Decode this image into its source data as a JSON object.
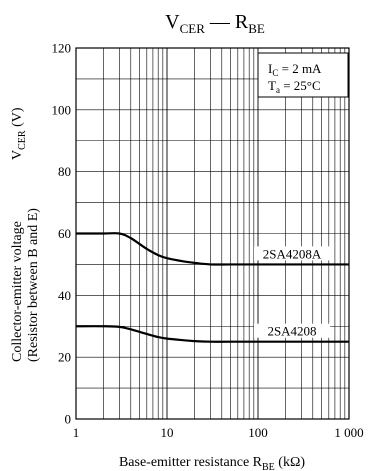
{
  "chart_data": {
    "type": "line",
    "title": {
      "main": "V",
      "main_sub": "CER",
      "sep": " — ",
      "second": "R",
      "second_sub": "BE"
    },
    "xlabel": {
      "pre": "Base-emitter resistance  R",
      "sub": "BE",
      "post": "  (kΩ)"
    },
    "ylabel_line1": "Collector-emitter voltage",
    "ylabel_line2": "(Resistor between B and E)",
    "ylabel_symbol": {
      "main": "V",
      "sub": "CER",
      "unit": "  (V)"
    },
    "x_scale": "log",
    "xlim": [
      1,
      1000
    ],
    "ylim": [
      0,
      120
    ],
    "x_ticks": [
      1,
      10,
      100,
      1000
    ],
    "x_tick_labels": [
      "1",
      "10",
      "100",
      "1 000"
    ],
    "y_ticks": [
      0,
      20,
      40,
      60,
      80,
      100,
      120
    ],
    "y_tick_labels": [
      "0",
      "20",
      "40",
      "60",
      "80",
      "100",
      "120"
    ],
    "y_minor_step": 10,
    "grid": true,
    "conditions": {
      "line1": {
        "main": "I",
        "sub": "C",
        "rest": " = 2 mA"
      },
      "line2": {
        "main": "T",
        "sub": "a",
        "rest": " = 25°C"
      }
    },
    "series": [
      {
        "name": "2SA4208A",
        "x": [
          1,
          2,
          3,
          4,
          6,
          8,
          10,
          15,
          20,
          30,
          50,
          100,
          1000
        ],
        "y": [
          60,
          60,
          60,
          58.5,
          55,
          53,
          52,
          51,
          50.5,
          50,
          50,
          50,
          50
        ]
      },
      {
        "name": "2SA4208",
        "x": [
          1,
          2,
          3,
          4,
          6,
          8,
          10,
          15,
          20,
          30,
          50,
          100,
          1000
        ],
        "y": [
          30,
          30,
          29.8,
          29,
          27.5,
          26.5,
          26,
          25.5,
          25.2,
          25,
          25,
          25,
          25
        ]
      }
    ],
    "colors": {
      "line": "#000000",
      "grid": "#000000",
      "background": "#ffffff"
    }
  }
}
